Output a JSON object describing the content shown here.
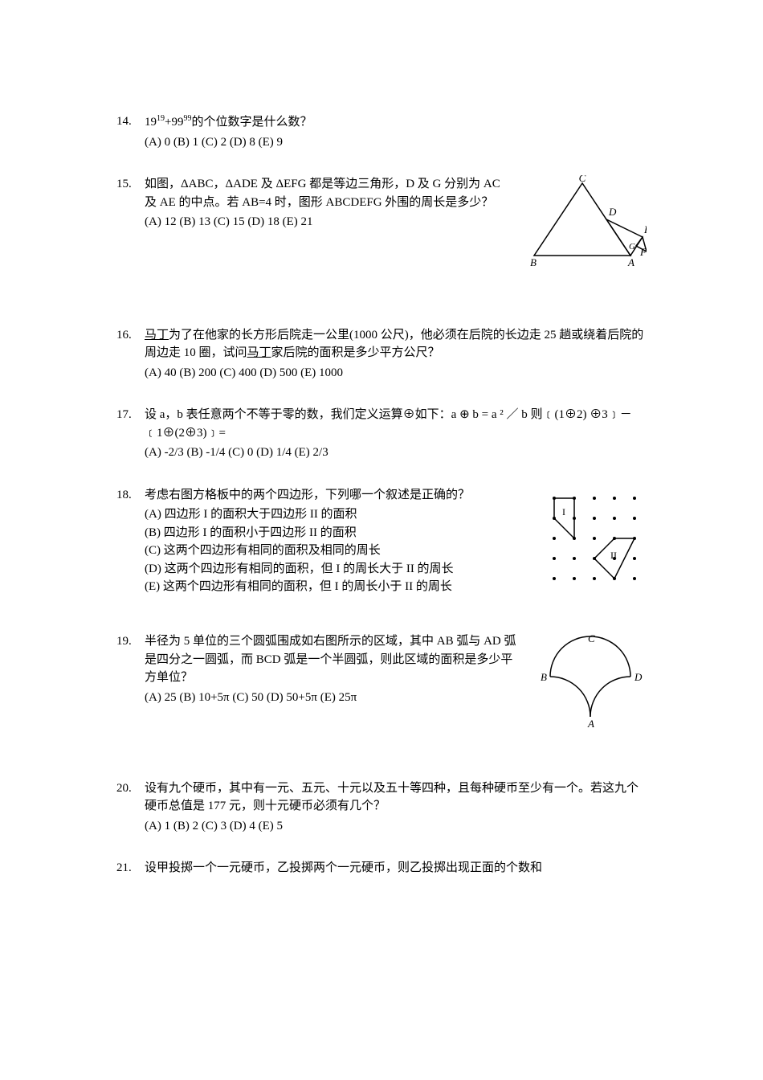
{
  "problems": {
    "p14": {
      "num": "14.",
      "text": "19<sup>19</sup>+99<sup>99</sup>的个位数字是什么数？",
      "opts": "(A) 0   (B) 1   (C) 2   (D) 8   (E) 9"
    },
    "p15": {
      "num": "15.",
      "text": "如图，ΔABC，ΔADE 及 ΔEFG 都是等边三角形，D 及 G 分别为 AC 及 AE 的中点。若 AB=4 时，图形 ABCDEFG 外围的周长是多少？",
      "opts": "(A) 12   (B) 13   (C) 15   (D) 18   (E) 21",
      "fig": {
        "labels": {
          "A": "A",
          "B": "B",
          "C": "C",
          "D": "D",
          "E": "E",
          "F": "F",
          "G": "G"
        },
        "stroke": "#000000",
        "background": "#ffffff"
      }
    },
    "p16": {
      "num": "16.",
      "person": "马丁",
      "text_before": "为了在他家的长方形后院走一公里(1000 公尺)，他必须在后院的长边走 25 趟或绕着后院的周边走 10 圈，试问",
      "text_after": "家后院的面积是多少平方公尺？",
      "opts": "(A) 40   (B) 200   (C) 400   (D) 500   (E) 1000"
    },
    "p17": {
      "num": "17.",
      "text": "设 a，b 表任意两个不等于零的数，我们定义运算⊕如下：a ⊕ b = a ² ／ b 则﹝(1⊕2)  ⊕3﹞－﹝1⊕(2⊕3)﹞=",
      "opts": "(A) -2/3   (B) -1/4   (C) 0   (D) 1/4   (E) 2/3"
    },
    "p18": {
      "num": "18.",
      "text": "考虑右图方格板中的两个四边形，下列哪一个叙述是正确的？",
      "optA": "(A) 四边形 I 的面积大于四边形 II 的面积",
      "optB": "(B) 四边形 I 的面积小于四边形 II 的面积",
      "optC": "(C) 这两个四边形有相同的面积及相同的周长",
      "optD": "(D) 这两个四边形有相同的面积，但 I 的周长大于 II 的周长",
      "optE": "(E) 这两个四边形有相同的面积，但 I 的周长小于 II 的周长",
      "fig": {
        "labelI": "I",
        "labelII": "II",
        "dot_color": "#000000",
        "stroke": "#000000"
      }
    },
    "p19": {
      "num": "19.",
      "text": "半径为 5 单位的三个圆弧围成如右图所示的区域，其中 AB 弧与 AD 弧是四分之一圆弧，而 BCD 弧是一个半圆弧，则此区域的面积是多少平方单位？",
      "opts": "(A) 25   (B) 10+5π   (C) 50   (D) 50+5π   (E) 25π",
      "fig": {
        "labels": {
          "A": "A",
          "B": "B",
          "C": "C",
          "D": "D"
        },
        "stroke": "#000000"
      }
    },
    "p20": {
      "num": "20.",
      "text": "设有九个硬币，其中有一元、五元、十元以及五十等四种，且每种硬币至少有一个。若这九个硬币总值是 177 元，则十元硬币必须有几个？",
      "opts": "(A) 1   (B) 2   (C) 3   (D) 4   (E) 5"
    },
    "p21": {
      "num": "21.",
      "text": "设甲投掷一个一元硬币，乙投掷两个一元硬币，则乙投掷出现正面的个数和"
    }
  }
}
